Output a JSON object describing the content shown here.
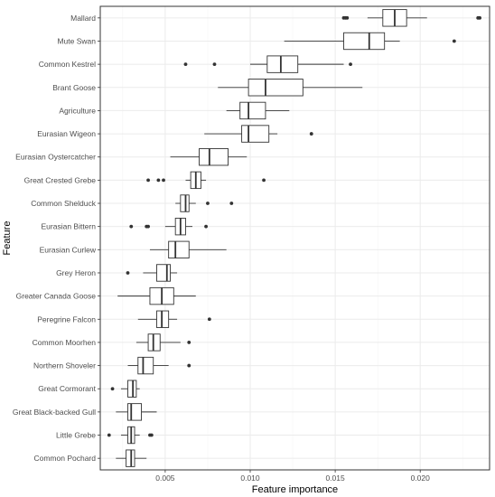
{
  "chart_data": {
    "type": "boxplot",
    "orientation": "horizontal",
    "xlabel": "Feature importance",
    "ylabel": "Feature",
    "xlim": [
      0.00118,
      0.02408
    ],
    "x_ticks": [
      0.005,
      0.01,
      0.015,
      0.02
    ],
    "x_tick_labels": [
      "0.005",
      "0.010",
      "0.015",
      "0.020"
    ],
    "grid": true,
    "colors": {
      "box_fill": "#ffffff",
      "line": "#333333",
      "grid_major": "#ebebeb",
      "grid_minor": "#f5f5f5",
      "panel_border": "#333333"
    },
    "categories": [
      "Mallard",
      "Mute Swan",
      "Common Kestrel",
      "Brant Goose",
      "Agriculture",
      "Eurasian Wigeon",
      "Eurasian Oystercatcher",
      "Great Crested Grebe",
      "Common Shelduck",
      "Eurasian Bittern",
      "Eurasian Curlew",
      "Grey Heron",
      "Greater Canada Goose",
      "Peregrine Falcon",
      "Common Moorhen",
      "Northern Shoveler",
      "Great Cormorant",
      "Great Black-backed Gull",
      "Little Grebe",
      "Common Pochard"
    ],
    "boxes": [
      {
        "name": "Mallard",
        "whisker_low": 0.0169,
        "q1": 0.0178,
        "median": 0.0185,
        "q3": 0.0192,
        "whisker_high": 0.0204,
        "outliers": [
          0.0155,
          0.0156,
          0.0157,
          0.0234,
          0.0235
        ]
      },
      {
        "name": "Mute Swan",
        "whisker_low": 0.012,
        "q1": 0.0155,
        "median": 0.017,
        "q3": 0.0179,
        "whisker_high": 0.0188,
        "outliers": [
          0.022
        ]
      },
      {
        "name": "Common Kestrel",
        "whisker_low": 0.01,
        "q1": 0.011,
        "median": 0.0118,
        "q3": 0.0128,
        "whisker_high": 0.0155,
        "outliers": [
          0.0062,
          0.0079,
          0.0159
        ]
      },
      {
        "name": "Brant Goose",
        "whisker_low": 0.0081,
        "q1": 0.0099,
        "median": 0.0109,
        "q3": 0.0131,
        "whisker_high": 0.0166,
        "outliers": []
      },
      {
        "name": "Agriculture",
        "whisker_low": 0.0086,
        "q1": 0.0094,
        "median": 0.0099,
        "q3": 0.0109,
        "whisker_high": 0.0123,
        "outliers": []
      },
      {
        "name": "Eurasian Wigeon",
        "whisker_low": 0.0073,
        "q1": 0.0095,
        "median": 0.0099,
        "q3": 0.0111,
        "whisker_high": 0.0116,
        "outliers": [
          0.0136
        ]
      },
      {
        "name": "Eurasian Oystercatcher",
        "whisker_low": 0.0053,
        "q1": 0.007,
        "median": 0.0076,
        "q3": 0.0087,
        "whisker_high": 0.0098,
        "outliers": []
      },
      {
        "name": "Great Crested Grebe",
        "whisker_low": 0.0062,
        "q1": 0.0065,
        "median": 0.0068,
        "q3": 0.0071,
        "whisker_high": 0.0074,
        "outliers": [
          0.004,
          0.0046,
          0.0049,
          0.0108
        ]
      },
      {
        "name": "Common Shelduck",
        "whisker_low": 0.0056,
        "q1": 0.0059,
        "median": 0.0062,
        "q3": 0.0064,
        "whisker_high": 0.0068,
        "outliers": [
          0.0075,
          0.0089
        ]
      },
      {
        "name": "Eurasian Bittern",
        "whisker_low": 0.005,
        "q1": 0.0056,
        "median": 0.0059,
        "q3": 0.0062,
        "whisker_high": 0.0066,
        "outliers": [
          0.003,
          0.0039,
          0.004,
          0.0074
        ]
      },
      {
        "name": "Eurasian Curlew",
        "whisker_low": 0.0041,
        "q1": 0.0052,
        "median": 0.0056,
        "q3": 0.0064,
        "whisker_high": 0.0086,
        "outliers": []
      },
      {
        "name": "Grey Heron",
        "whisker_low": 0.0037,
        "q1": 0.0045,
        "median": 0.0051,
        "q3": 0.0053,
        "whisker_high": 0.0057,
        "outliers": [
          0.0028
        ]
      },
      {
        "name": "Greater Canada Goose",
        "whisker_low": 0.0022,
        "q1": 0.0041,
        "median": 0.0048,
        "q3": 0.0055,
        "whisker_high": 0.0068,
        "outliers": []
      },
      {
        "name": "Peregrine Falcon",
        "whisker_low": 0.0034,
        "q1": 0.0045,
        "median": 0.0048,
        "q3": 0.0052,
        "whisker_high": 0.0057,
        "outliers": [
          0.0076
        ]
      },
      {
        "name": "Common Moorhen",
        "whisker_low": 0.0033,
        "q1": 0.004,
        "median": 0.0043,
        "q3": 0.0047,
        "whisker_high": 0.0059,
        "outliers": [
          0.0064
        ]
      },
      {
        "name": "Northern Shoveler",
        "whisker_low": 0.0028,
        "q1": 0.0034,
        "median": 0.0037,
        "q3": 0.0043,
        "whisker_high": 0.0052,
        "outliers": [
          0.0064
        ]
      },
      {
        "name": "Great Cormorant",
        "whisker_low": 0.0024,
        "q1": 0.0028,
        "median": 0.0031,
        "q3": 0.0033,
        "whisker_high": 0.0035,
        "outliers": [
          0.0019
        ]
      },
      {
        "name": "Great Black-backed Gull",
        "whisker_low": 0.0021,
        "q1": 0.0028,
        "median": 0.003,
        "q3": 0.0036,
        "whisker_high": 0.0045,
        "outliers": []
      },
      {
        "name": "Little Grebe",
        "whisker_low": 0.0024,
        "q1": 0.0028,
        "median": 0.003,
        "q3": 0.0032,
        "whisker_high": 0.0035,
        "outliers": [
          0.0017,
          0.0041,
          0.0042
        ]
      },
      {
        "name": "Common Pochard",
        "whisker_low": 0.0021,
        "q1": 0.0027,
        "median": 0.003,
        "q3": 0.0032,
        "whisker_high": 0.0039,
        "outliers": []
      }
    ]
  }
}
